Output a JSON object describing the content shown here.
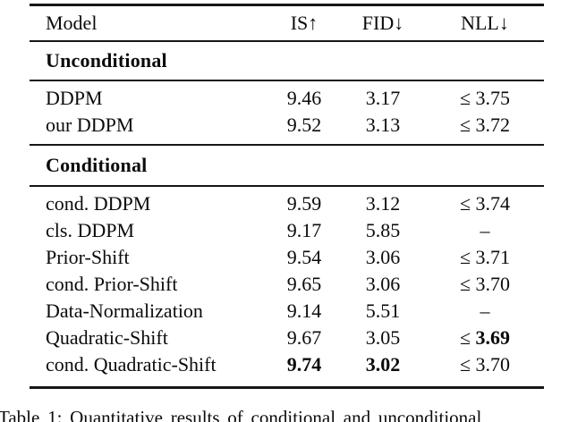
{
  "table": {
    "headers": {
      "model": "Model",
      "is": "IS↑",
      "fid": "FID↓",
      "nll": "NLL↓"
    },
    "sections": [
      {
        "title": "Unconditional",
        "rows": [
          {
            "model": "DDPM",
            "is": "9.46",
            "fid": "3.17",
            "nll": "≤ 3.75"
          },
          {
            "model": "our DDPM",
            "is": "9.52",
            "fid": "3.13",
            "nll": "≤ 3.72"
          }
        ]
      },
      {
        "title": "Conditional",
        "rows": [
          {
            "model": "cond. DDPM",
            "is": "9.59",
            "fid": "3.12",
            "nll": "≤ 3.74"
          },
          {
            "model": "cls. DDPM",
            "is": "9.17",
            "fid": "5.85",
            "nll": "–"
          },
          {
            "model": "Prior-Shift",
            "is": "9.54",
            "fid": "3.06",
            "nll": "≤ 3.71"
          },
          {
            "model": "cond. Prior-Shift",
            "is": "9.65",
            "fid": "3.06",
            "nll": "≤ 3.70"
          },
          {
            "model": "Data-Normalization",
            "is": "9.14",
            "fid": "5.51",
            "nll": "–"
          },
          {
            "model": "Quadratic-Shift",
            "is": "9.67",
            "fid": "3.05",
            "nll_prefix": "≤ ",
            "nll_bold": "3.69"
          },
          {
            "model": "cond. Quadratic-Shift",
            "is": "9.74",
            "fid": "3.02",
            "nll": "≤ 3.70"
          }
        ]
      }
    ]
  },
  "caption": "Table 1: Quantitative results of conditional and unconditional"
}
